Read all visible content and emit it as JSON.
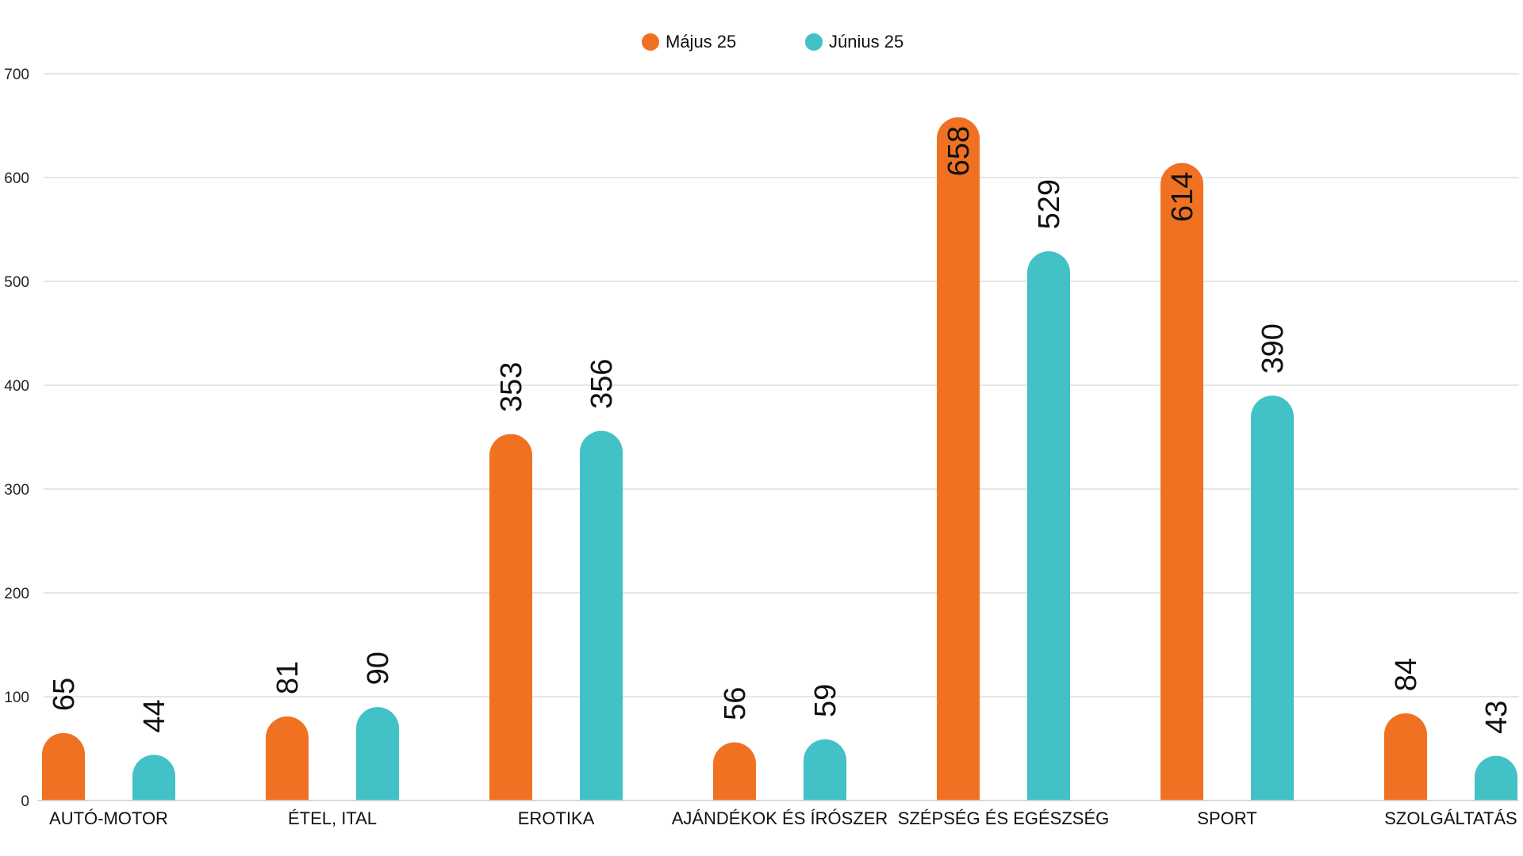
{
  "chart_data": {
    "type": "bar",
    "title": "",
    "xlabel": "",
    "ylabel": "",
    "ylim": [
      0,
      700
    ],
    "yticks": [
      0,
      100,
      200,
      300,
      400,
      500,
      600,
      700
    ],
    "grid": true,
    "legend_position": "top-center",
    "categories": [
      "AUTÓ-MOTOR",
      "ÉTEL, ITAL",
      "EROTIKA",
      "AJÁNDÉKOK ÉS ÍRÓSZER",
      "SZÉPSÉG ÉS EGÉSZSÉG",
      "SPORT",
      "SZOLGÁLTATÁS"
    ],
    "series": [
      {
        "name": "Május 25",
        "color": "#f07122",
        "values": [
          65,
          81,
          353,
          56,
          658,
          614,
          84
        ]
      },
      {
        "name": "Június 25",
        "color": "#42c1c6",
        "values": [
          44,
          90,
          356,
          59,
          529,
          390,
          43
        ]
      }
    ]
  }
}
